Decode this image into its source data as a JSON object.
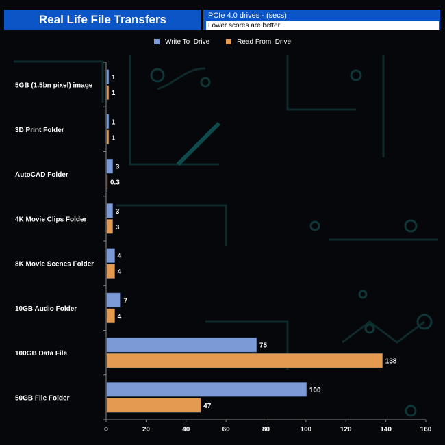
{
  "header": {
    "title": "Real Life File Transfers",
    "subtitle": "PCIe 4.0 drives - (secs)",
    "note": "Lower scores are better"
  },
  "chart_data": {
    "type": "bar",
    "orientation": "horizontal",
    "categories": [
      "5GB (1.5bn pixel) image",
      "3D Print Folder",
      "AutoCAD Folder",
      "4K Movie Clips Folder",
      "8K Movie Scenes Folder",
      "10GB Audio Folder",
      "100GB Data File",
      "50GB File Folder"
    ],
    "series": [
      {
        "name": "Write To  Drive",
        "color": "#7b9ad6",
        "values": [
          1,
          1,
          3,
          3,
          4,
          7,
          75,
          100
        ]
      },
      {
        "name": "Read From  Drive",
        "color": "#e49b4f",
        "values": [
          1,
          1,
          0.3,
          3,
          4,
          4,
          138,
          47
        ]
      }
    ],
    "xlim": [
      0,
      160
    ],
    "xticks": [
      0,
      20,
      40,
      60,
      80,
      100,
      120,
      140,
      160
    ],
    "legend_position": "top-center",
    "grid": false
  }
}
